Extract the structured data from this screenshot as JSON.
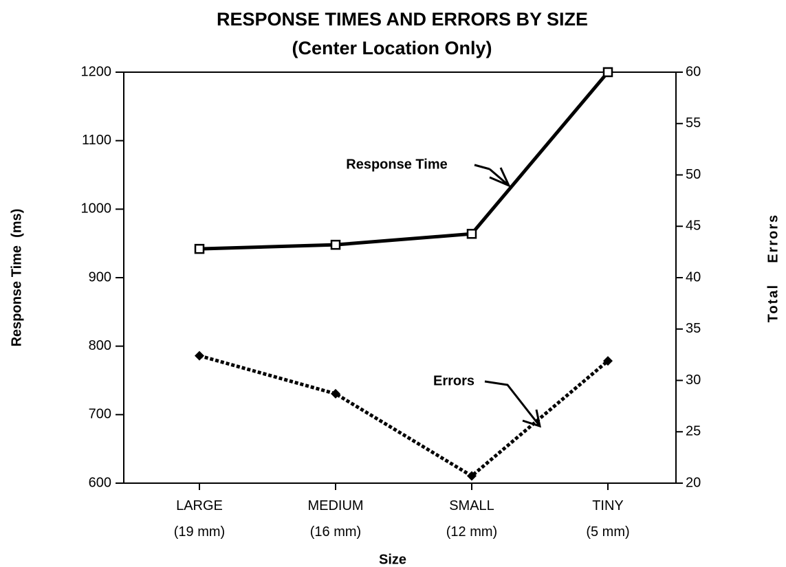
{
  "chart_data": {
    "type": "line",
    "title": "RESPONSE TIMES AND ERRORS BY SIZE",
    "subtitle": "(Center Location Only)",
    "x_label": "Size",
    "y_label": "Response Time  (ms)",
    "y2_label": "Total    Errors",
    "categories": [
      "LARGE\n(19 mm)",
      "MEDIUM\n(16 mm)",
      "SMALL\n(12 mm)",
      "TINY\n(5 mm)"
    ],
    "series": [
      {
        "name": "Response Time",
        "color": "#000000",
        "values": [
          942,
          948,
          964,
          1200
        ]
      },
      {
        "name": "Errors",
        "color": "#000000",
        "axis": "y2",
        "values": [
          32.4,
          28.7,
          20.7,
          31.9
        ]
      }
    ],
    "ylim": [
      600,
      1200
    ],
    "yticks": [
      600,
      700,
      800,
      900,
      1000,
      1100,
      1200
    ],
    "y2lim": [
      20,
      60
    ],
    "y2ticks": [
      20,
      25,
      30,
      35,
      40,
      45,
      50,
      55,
      60
    ]
  }
}
